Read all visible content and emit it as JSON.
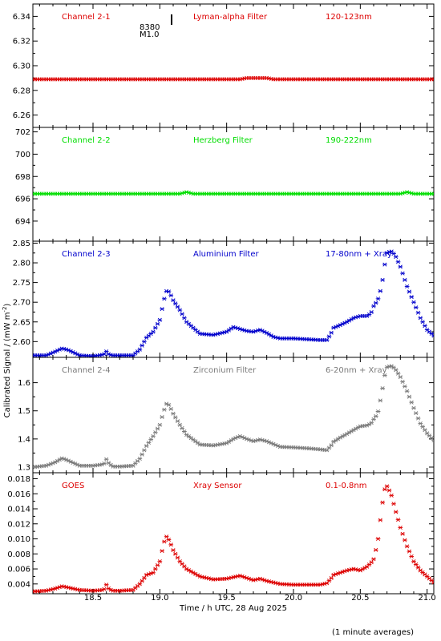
{
  "xlabel": "Time / h UTC, 28 Aug 2025",
  "ylabel": "Calibrated Signal / (mW m",
  "ylabel_sup": "-2",
  "ylabel_close": ")",
  "footnote": "(1 minute averages)",
  "flare_marker": {
    "event": "8380",
    "class": "M1.0",
    "time": 19.04
  },
  "colors": {
    "red": "#dd0000",
    "green": "#00dd00",
    "blue": "#0000cc",
    "gray": "#7a7a7a"
  },
  "chart_data": [
    {
      "type": "scatter",
      "header": {
        "channel": "Channel 2-1",
        "filter": "Lyman-alpha Filter",
        "band": "120-123nm"
      },
      "color": "red",
      "xlim": [
        18.05,
        21.05
      ],
      "ylim": [
        6.25,
        6.35
      ],
      "yticks": [
        6.26,
        6.28,
        6.3,
        6.32,
        6.34
      ],
      "ytick_labels": [
        "6.26",
        "6.28",
        "6.30",
        "6.32",
        "6.34"
      ],
      "series": [
        {
          "x": [
            18.05,
            19.6,
            19.65,
            19.7,
            19.8,
            19.85,
            21.05
          ],
          "y": [
            6.289,
            6.289,
            6.29,
            6.29,
            6.29,
            6.289,
            6.289
          ]
        }
      ]
    },
    {
      "type": "scatter",
      "header": {
        "channel": "Channel 2-2",
        "filter": "Herzberg Filter",
        "band": "190-222nm"
      },
      "color": "green",
      "xlim": [
        18.05,
        21.05
      ],
      "ylim": [
        692.2,
        702.4
      ],
      "yticks": [
        694,
        696,
        698,
        700,
        702
      ],
      "ytick_labels": [
        "694",
        "696",
        "698",
        "700",
        "702"
      ],
      "series": [
        {
          "x": [
            18.05,
            19.15,
            19.2,
            19.25,
            20.8,
            20.85,
            20.9,
            21.05
          ],
          "y": [
            696.45,
            696.45,
            696.6,
            696.45,
            696.45,
            696.6,
            696.45,
            696.45
          ]
        }
      ]
    },
    {
      "type": "scatter",
      "header": {
        "channel": "Channel 2-3",
        "filter": "Aluminium Filter",
        "band": "17-80nm + Xray"
      },
      "color": "blue",
      "xlim": [
        18.05,
        21.05
      ],
      "ylim": [
        2.56,
        2.855
      ],
      "yticks": [
        2.6,
        2.65,
        2.7,
        2.75,
        2.8,
        2.85
      ],
      "ytick_labels": [
        "2.60",
        "2.65",
        "2.70",
        "2.75",
        "2.80",
        "2.85"
      ],
      "series": [
        {
          "x": [
            18.05,
            18.15,
            18.22,
            18.27,
            18.32,
            18.4,
            18.5,
            18.58,
            18.6,
            18.62,
            18.65,
            18.7,
            18.8,
            18.85,
            18.9,
            18.95,
            19.0,
            19.03,
            19.05,
            19.07,
            19.1,
            19.15,
            19.2,
            19.3,
            19.4,
            19.5,
            19.55,
            19.6,
            19.65,
            19.7,
            19.75,
            19.8,
            19.85,
            19.9,
            20.0,
            20.1,
            20.2,
            20.25,
            20.28,
            20.3,
            20.35,
            20.4,
            20.45,
            20.5,
            20.55,
            20.58,
            20.6,
            20.63,
            20.66,
            20.68,
            20.7,
            20.73,
            20.76,
            20.8,
            20.85,
            20.9,
            20.95,
            21.0,
            21.05
          ],
          "y": [
            2.565,
            2.565,
            2.575,
            2.583,
            2.578,
            2.565,
            2.563,
            2.567,
            2.575,
            2.567,
            2.565,
            2.565,
            2.565,
            2.58,
            2.61,
            2.625,
            2.655,
            2.705,
            2.728,
            2.727,
            2.705,
            2.68,
            2.65,
            2.62,
            2.617,
            2.625,
            2.637,
            2.632,
            2.627,
            2.625,
            2.63,
            2.622,
            2.612,
            2.608,
            2.608,
            2.606,
            2.604,
            2.604,
            2.62,
            2.635,
            2.642,
            2.65,
            2.66,
            2.665,
            2.665,
            2.672,
            2.69,
            2.705,
            2.74,
            2.79,
            2.825,
            2.83,
            2.82,
            2.79,
            2.74,
            2.7,
            2.66,
            2.63,
            2.615
          ]
        }
      ]
    },
    {
      "type": "scatter",
      "header": {
        "channel": "Channel 2-4",
        "filter": "Zirconium Filter",
        "band": "6-20nm + Xray"
      },
      "color": "gray",
      "xlim": [
        18.05,
        21.05
      ],
      "ylim": [
        1.28,
        1.69
      ],
      "yticks": [
        1.3,
        1.4,
        1.5,
        1.6
      ],
      "ytick_labels": [
        "1.3",
        "1.4",
        "1.5",
        "1.6"
      ],
      "series": [
        {
          "x": [
            18.05,
            18.15,
            18.22,
            18.27,
            18.32,
            18.4,
            18.5,
            18.58,
            18.6,
            18.62,
            18.65,
            18.7,
            18.8,
            18.85,
            18.9,
            18.95,
            19.0,
            19.03,
            19.05,
            19.07,
            19.1,
            19.15,
            19.2,
            19.3,
            19.4,
            19.5,
            19.55,
            19.6,
            19.65,
            19.7,
            19.75,
            19.8,
            19.85,
            19.9,
            20.0,
            20.1,
            20.2,
            20.25,
            20.28,
            20.3,
            20.35,
            20.4,
            20.45,
            20.5,
            20.55,
            20.58,
            20.6,
            20.63,
            20.66,
            20.68,
            20.7,
            20.73,
            20.76,
            20.8,
            20.85,
            20.9,
            20.95,
            21.0,
            21.05
          ],
          "y": [
            1.3,
            1.305,
            1.318,
            1.332,
            1.322,
            1.305,
            1.305,
            1.31,
            1.328,
            1.312,
            1.302,
            1.302,
            1.305,
            1.33,
            1.375,
            1.41,
            1.45,
            1.5,
            1.525,
            1.52,
            1.49,
            1.45,
            1.415,
            1.38,
            1.377,
            1.385,
            1.4,
            1.41,
            1.4,
            1.392,
            1.398,
            1.392,
            1.382,
            1.372,
            1.37,
            1.367,
            1.363,
            1.36,
            1.375,
            1.39,
            1.405,
            1.418,
            1.432,
            1.445,
            1.448,
            1.455,
            1.47,
            1.49,
            1.56,
            1.62,
            1.655,
            1.66,
            1.65,
            1.62,
            1.57,
            1.51,
            1.455,
            1.42,
            1.395
          ]
        }
      ]
    },
    {
      "type": "scatter",
      "header": {
        "channel": "GOES",
        "filter": "Xray Sensor",
        "band": "0.1-0.8nm"
      },
      "color": "red",
      "xlim": [
        18.05,
        21.05
      ],
      "ylim": [
        0.0027,
        0.0188
      ],
      "yticks": [
        0.004,
        0.006,
        0.008,
        0.01,
        0.012,
        0.014,
        0.016,
        0.018
      ],
      "ytick_labels": [
        "0.004",
        "0.006",
        "0.008",
        "0.010",
        "0.012",
        "0.014",
        "0.016",
        "0.018"
      ],
      "series": [
        {
          "x": [
            18.05,
            18.15,
            18.22,
            18.27,
            18.32,
            18.4,
            18.5,
            18.58,
            18.6,
            18.62,
            18.65,
            18.7,
            18.8,
            18.85,
            18.9,
            18.95,
            19.0,
            19.03,
            19.05,
            19.07,
            19.1,
            19.15,
            19.2,
            19.3,
            19.4,
            19.5,
            19.55,
            19.6,
            19.65,
            19.7,
            19.75,
            19.8,
            19.85,
            19.9,
            20.0,
            20.1,
            20.2,
            20.25,
            20.28,
            20.3,
            20.35,
            20.4,
            20.45,
            20.5,
            20.55,
            20.58,
            20.6,
            20.63,
            20.66,
            20.68,
            20.7,
            20.73,
            20.76,
            20.8,
            20.85,
            20.9,
            20.95,
            21.0,
            21.05
          ],
          "y": [
            0.003,
            0.0031,
            0.0034,
            0.0037,
            0.0035,
            0.0032,
            0.0031,
            0.0032,
            0.0039,
            0.0033,
            0.0031,
            0.0031,
            0.0032,
            0.004,
            0.0052,
            0.0055,
            0.007,
            0.0095,
            0.0103,
            0.0098,
            0.0085,
            0.007,
            0.006,
            0.005,
            0.0046,
            0.0047,
            0.0049,
            0.0051,
            0.0048,
            0.0045,
            0.0047,
            0.0044,
            0.0042,
            0.004,
            0.0039,
            0.0039,
            0.0039,
            0.0041,
            0.0047,
            0.0052,
            0.0055,
            0.0058,
            0.006,
            0.0058,
            0.0063,
            0.0068,
            0.0073,
            0.0095,
            0.014,
            0.0165,
            0.017,
            0.016,
            0.014,
            0.0115,
            0.009,
            0.007,
            0.0058,
            0.005,
            0.0042
          ]
        }
      ]
    }
  ],
  "xaxis": {
    "ticks": [
      18.5,
      19.0,
      19.5,
      20.0,
      20.5,
      21.0
    ],
    "tick_labels": [
      "18.5",
      "19.0",
      "19.5",
      "20.0",
      "20.5",
      "21.0"
    ]
  }
}
